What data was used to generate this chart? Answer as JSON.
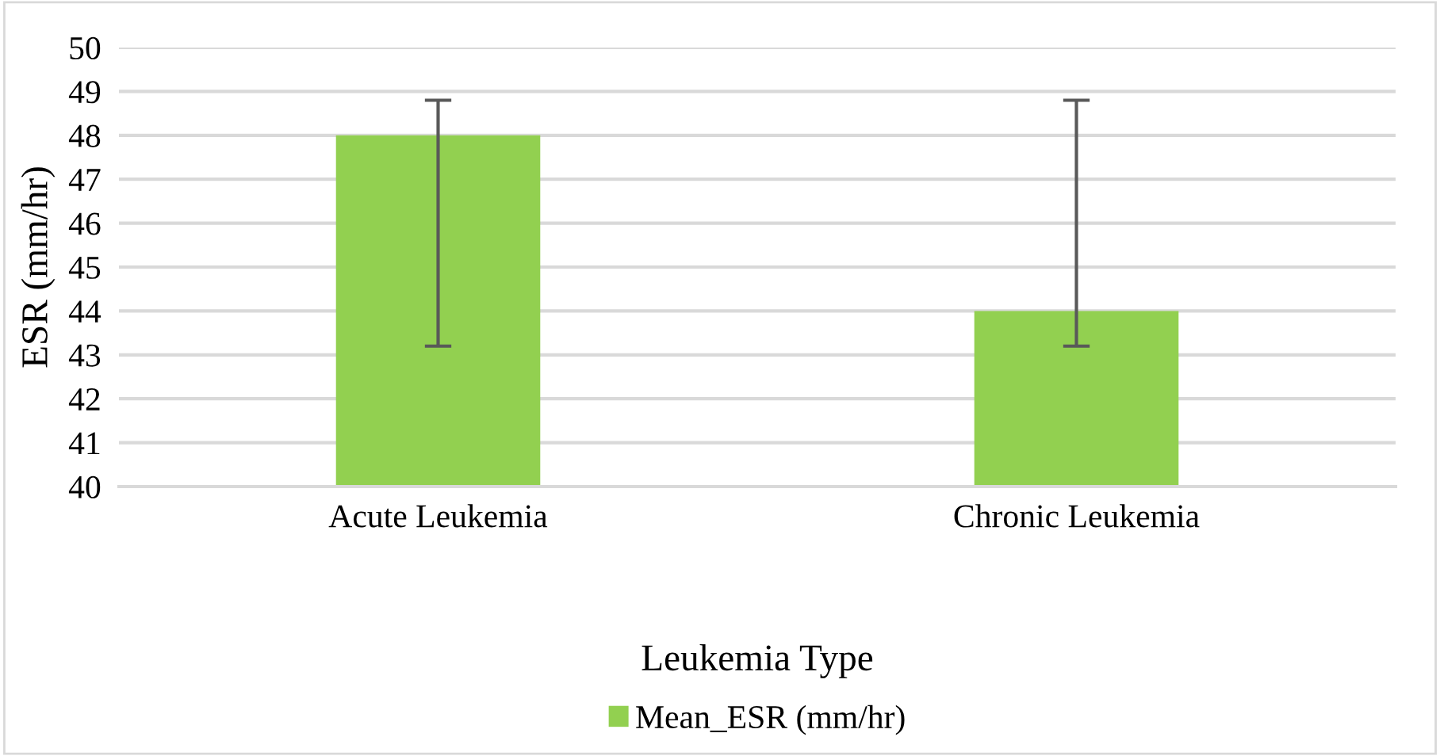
{
  "chart_data": {
    "type": "bar",
    "xlabel": "Leukemia Type",
    "ylabel": "ESR (mm/hr)",
    "categories": [
      "Acute Leukemia",
      "Chronic Leukemia"
    ],
    "series": [
      {
        "name": "Mean_ESR (mm/hr)",
        "color": "#92d050",
        "values": [
          48,
          44
        ],
        "errors": [
          [
            43.2,
            48.8
          ],
          [
            43.2,
            48.8
          ]
        ]
      }
    ],
    "ylim": [
      40,
      50
    ],
    "yticks": [
      40,
      41,
      42,
      43,
      44,
      45,
      46,
      47,
      48,
      49,
      50
    ],
    "grid": "y",
    "legend": "bottom"
  }
}
